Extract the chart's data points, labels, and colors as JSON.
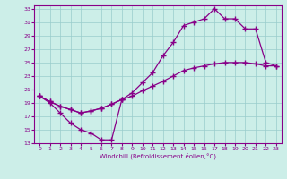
{
  "xlabel": "Windchill (Refroidissement éolien,°C)",
  "bg_color": "#cceee8",
  "line_color": "#880088",
  "grid_color": "#99cccc",
  "xlim": [
    -0.5,
    23.5
  ],
  "ylim": [
    13,
    33.5
  ],
  "xticks": [
    0,
    1,
    2,
    3,
    4,
    5,
    6,
    7,
    8,
    9,
    10,
    11,
    12,
    13,
    14,
    15,
    16,
    17,
    18,
    19,
    20,
    21,
    22,
    23
  ],
  "yticks": [
    13,
    15,
    17,
    19,
    21,
    23,
    25,
    27,
    29,
    31,
    33
  ],
  "line1": {
    "x": [
      0,
      1,
      2,
      3,
      4,
      5,
      6,
      7,
      8
    ],
    "y": [
      20,
      19,
      17.5,
      16,
      15,
      14.5,
      13.5,
      13.5,
      19.5
    ]
  },
  "line2": {
    "x": [
      0,
      1,
      2,
      3,
      4,
      5,
      6,
      7,
      8,
      9,
      10,
      11,
      12,
      13,
      14,
      15,
      16,
      17,
      18,
      19,
      20,
      21,
      22,
      23
    ],
    "y": [
      20,
      19.2,
      18.5,
      18,
      17.5,
      17.8,
      18.2,
      18.8,
      19.5,
      20,
      20.8,
      21.5,
      22.2,
      23,
      23.8,
      24.2,
      24.5,
      24.8,
      25,
      25,
      25,
      24.8,
      24.5,
      24.5
    ]
  },
  "line3": {
    "x": [
      0,
      1,
      2,
      3,
      4,
      5,
      6,
      7,
      8,
      9,
      10,
      11,
      12,
      13,
      14,
      15,
      16,
      17,
      18,
      19,
      20,
      21,
      22,
      23
    ],
    "y": [
      20,
      19.2,
      18.5,
      18,
      17.5,
      17.8,
      18.2,
      18.8,
      19.5,
      20.5,
      22,
      23.5,
      26,
      28,
      30.5,
      31,
      31.5,
      33,
      31.5,
      31.5,
      30,
      30,
      25,
      24.5
    ]
  }
}
